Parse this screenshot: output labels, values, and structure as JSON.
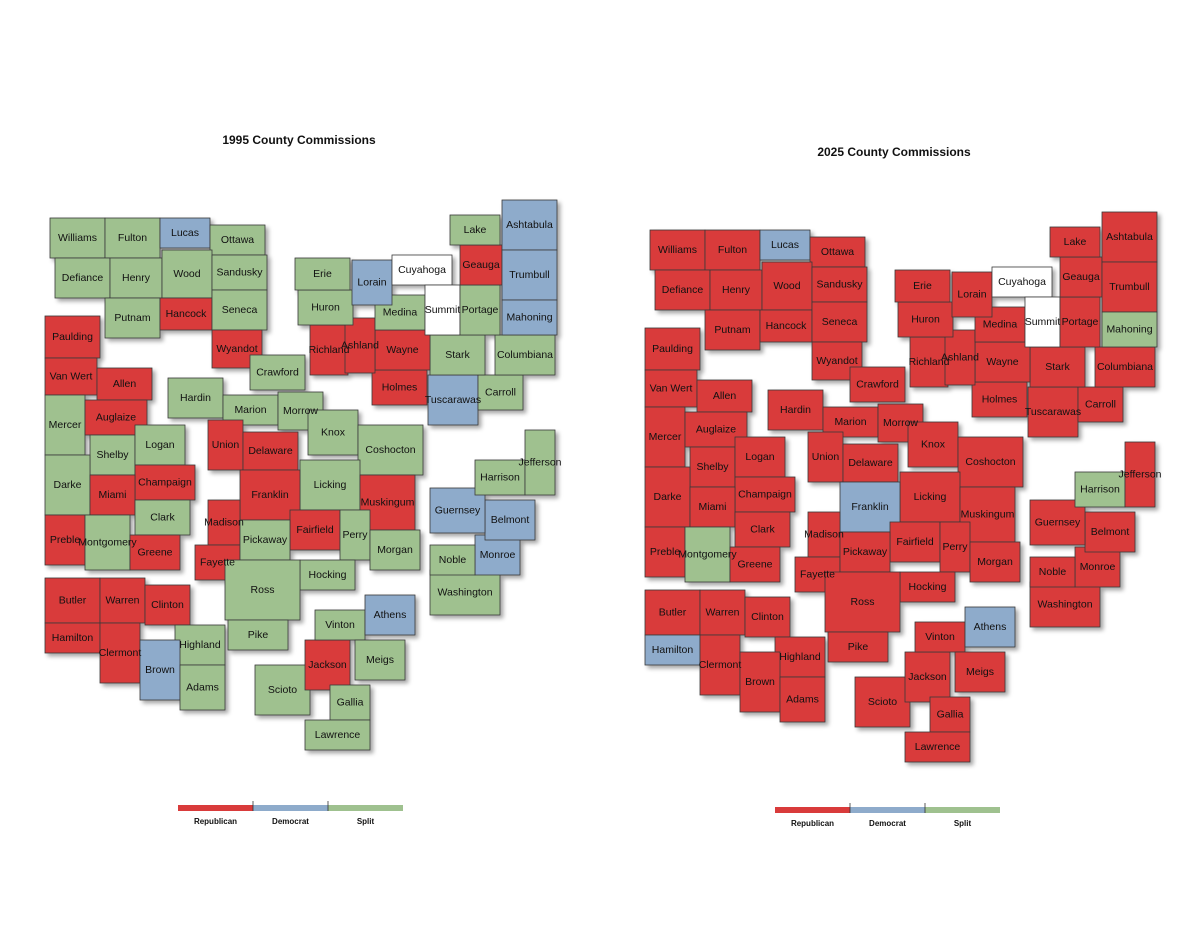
{
  "legend": [
    {
      "label": "Republican",
      "color": "#d93b3b"
    },
    {
      "label": "Democrat",
      "color": "#8eabcb"
    },
    {
      "label": "Split",
      "color": "#9fc18f"
    }
  ],
  "maps": [
    {
      "title": "1995 County Commissions",
      "names": [
        "Williams",
        "Fulton",
        "Lucas",
        "Ottawa",
        "Defiance",
        "Henry",
        "Wood",
        "Sandusky",
        "Putnam",
        "Hancock",
        "Seneca",
        "Paulding",
        "Wyandot",
        "Van Wert",
        "Allen",
        "Mercer",
        "Auglaize",
        "Hardin",
        "Crawford",
        "Marion",
        "Morrow",
        "Shelby",
        "Logan",
        "Darke",
        "Champaign",
        "Miami",
        "Clark",
        "Union",
        "Delaware",
        "Knox",
        "Coshocton",
        "Licking",
        "Franklin",
        "Muskingum",
        "Preble",
        "Montgomery",
        "Greene",
        "Madison",
        "Fayette",
        "Fairfield",
        "Perry",
        "Pickaway",
        "Hocking",
        "Morgan",
        "Ross",
        "Pike",
        "Butler",
        "Warren",
        "Clinton",
        "Hamilton",
        "Clermont",
        "Highland",
        "Brown",
        "Adams",
        "Scioto",
        "Jackson",
        "Vinton",
        "Athens",
        "Meigs",
        "Gallia",
        "Lawrence",
        "Washington",
        "Monroe",
        "Noble",
        "Belmont",
        "Guernsey",
        "Harrison",
        "Jefferson",
        "Tuscarawas",
        "Carroll",
        "Columbiana",
        "Stark",
        "Holmes",
        "Wayne",
        "Richland",
        "Ashland",
        "Medina",
        "Huron",
        "Erie",
        "Lorain",
        "Cuyahoga",
        "Summit",
        "Portage",
        "Geauga",
        "Lake",
        "Ashtabula",
        "Trumbull",
        "Mahoning"
      ],
      "parties": [
        2,
        2,
        1,
        2,
        2,
        2,
        2,
        2,
        2,
        0,
        2,
        0,
        0,
        0,
        0,
        2,
        0,
        2,
        2,
        2,
        2,
        2,
        2,
        2,
        0,
        0,
        2,
        0,
        0,
        2,
        2,
        2,
        0,
        0,
        0,
        2,
        0,
        0,
        0,
        0,
        2,
        2,
        2,
        2,
        2,
        2,
        0,
        0,
        0,
        0,
        0,
        2,
        1,
        2,
        2,
        0,
        2,
        1,
        2,
        2,
        2,
        2,
        1,
        2,
        1,
        1,
        2,
        2,
        1,
        2,
        2,
        2,
        0,
        0,
        0,
        0,
        2,
        2,
        2,
        1,
        null,
        null,
        2,
        0,
        2,
        1,
        1,
        1
      ]
    },
    {
      "title": "2025 County Commissions",
      "names": [
        "Williams",
        "Fulton",
        "Lucas",
        "Ottawa",
        "Defiance",
        "Henry",
        "Wood",
        "Sandusky",
        "Putnam",
        "Hancock",
        "Seneca",
        "Paulding",
        "Wyandot",
        "Van Wert",
        "Allen",
        "Mercer",
        "Auglaize",
        "Hardin",
        "Crawford",
        "Marion",
        "Morrow",
        "Shelby",
        "Logan",
        "Darke",
        "Champaign",
        "Miami",
        "Clark",
        "Union",
        "Delaware",
        "Knox",
        "Coshocton",
        "Licking",
        "Franklin",
        "Muskingum",
        "Preble",
        "Montgomery",
        "Greene",
        "Madison",
        "Fayette",
        "Fairfield",
        "Perry",
        "Pickaway",
        "Hocking",
        "Morgan",
        "Ross",
        "Pike",
        "Butler",
        "Warren",
        "Clinton",
        "Hamilton",
        "Clermont",
        "Highland",
        "Brown",
        "Adams",
        "Scioto",
        "Jackson",
        "Vinton",
        "Athens",
        "Meigs",
        "Gallia",
        "Lawrence",
        "Washington",
        "Monroe",
        "Noble",
        "Belmont",
        "Guernsey",
        "Harrison",
        "Jefferson",
        "Tuscarawas",
        "Carroll",
        "Columbiana",
        "Stark",
        "Holmes",
        "Wayne",
        "Richland",
        "Ashland",
        "Medina",
        "Huron",
        "Erie",
        "Lorain",
        "Cuyahoga",
        "Summit",
        "Portage",
        "Geauga",
        "Lake",
        "Ashtabula",
        "Trumbull",
        "Mahoning"
      ],
      "parties": [
        0,
        0,
        1,
        0,
        0,
        0,
        0,
        0,
        0,
        0,
        0,
        0,
        0,
        0,
        0,
        0,
        0,
        0,
        0,
        0,
        0,
        0,
        0,
        0,
        0,
        0,
        0,
        0,
        0,
        0,
        0,
        0,
        1,
        0,
        0,
        2,
        0,
        0,
        0,
        0,
        0,
        0,
        0,
        0,
        0,
        0,
        0,
        0,
        0,
        1,
        0,
        0,
        0,
        0,
        0,
        0,
        0,
        1,
        0,
        0,
        0,
        0,
        0,
        0,
        0,
        0,
        2,
        0,
        0,
        0,
        0,
        0,
        0,
        0,
        0,
        0,
        0,
        0,
        0,
        0,
        null,
        null,
        0,
        0,
        0,
        0,
        0,
        2
      ]
    }
  ]
}
